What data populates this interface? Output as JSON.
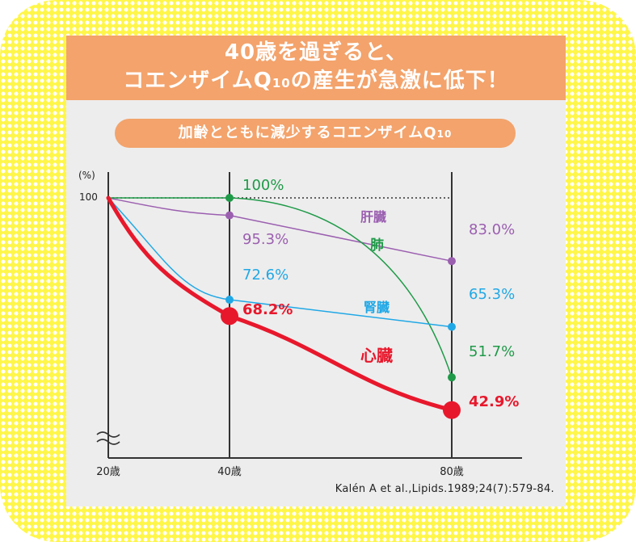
{
  "banner": {
    "line1": "40歳を過ぎると、",
    "line2_main": "コエンザイムQ",
    "line2_sub": "10",
    "line2_end": "の産生が急激に低下！"
  },
  "pill": {
    "main": "加齢とともに減少するコエンザイムQ",
    "sub": "10"
  },
  "citation": "Kalén A et al.,Lipids.1989;24(7):579-84.",
  "colors": {
    "frame": "#fff64a",
    "banner": "#f3a36b",
    "panel": "#ededed",
    "liver": "#9b5fb0",
    "lung": "#1f9a48",
    "kidney": "#20a8e6",
    "heart": "#e8182c"
  },
  "chart_data": {
    "type": "line",
    "x": [
      20,
      40,
      80
    ],
    "x_tick_labels": [
      "20歳",
      "40歳",
      "80歳"
    ],
    "y_unit_label": "(%)",
    "y_tick_label": "100",
    "ylim": [
      0,
      100
    ],
    "reference_line": 100,
    "series": [
      {
        "name": "肝臓",
        "key": "liver",
        "values": [
          100,
          95.3,
          83.0
        ],
        "labels": [
          "",
          "95.3%",
          "83.0%"
        ]
      },
      {
        "name": "肺",
        "key": "lung",
        "values": [
          100,
          100,
          51.7
        ],
        "labels": [
          "",
          "100%",
          "51.7%"
        ]
      },
      {
        "name": "腎臓",
        "key": "kidney",
        "values": [
          100,
          72.6,
          65.3
        ],
        "labels": [
          "",
          "72.6%",
          "65.3%"
        ]
      },
      {
        "name": "心臓",
        "key": "heart",
        "values": [
          100,
          68.2,
          42.9
        ],
        "labels": [
          "",
          "68.2%",
          "42.9%"
        ]
      }
    ]
  }
}
